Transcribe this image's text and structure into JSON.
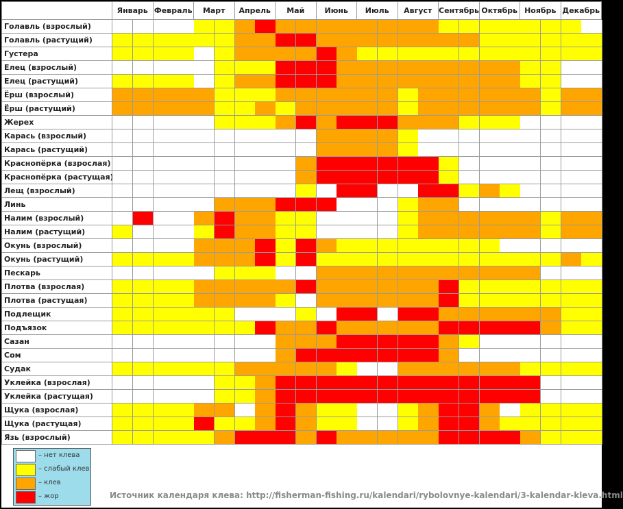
{
  "chart_data": {
    "type": "heatmap",
    "months": [
      "Январь",
      "Февраль",
      "Март",
      "Апрель",
      "Май",
      "Июнь",
      "Июль",
      "Август",
      "Сентябрь",
      "Октябрь",
      "Ноябрь",
      "Декабрь"
    ],
    "periods_per_month": 2,
    "levels": [
      "нет клева",
      "слабый клев",
      "клев",
      "жор"
    ],
    "level_colors": [
      "#ffffff",
      "#ffff00",
      "#ffa500",
      "#ff0000"
    ],
    "rows": [
      {
        "fish": "Голавль (взрослый)",
        "values": [
          0,
          0,
          0,
          0,
          1,
          1,
          2,
          3,
          2,
          2,
          2,
          2,
          2,
          2,
          2,
          2,
          1,
          1,
          1,
          1,
          1,
          1,
          1,
          0
        ]
      },
      {
        "fish": "Голавль (растущий)",
        "values": [
          1,
          1,
          1,
          1,
          1,
          1,
          2,
          2,
          3,
          3,
          2,
          2,
          2,
          2,
          2,
          2,
          2,
          2,
          1,
          1,
          1,
          1,
          1,
          1
        ]
      },
      {
        "fish": "Густера",
        "values": [
          1,
          1,
          1,
          1,
          0,
          1,
          2,
          2,
          2,
          2,
          3,
          2,
          1,
          1,
          1,
          1,
          1,
          1,
          1,
          1,
          1,
          1,
          1,
          1
        ]
      },
      {
        "fish": "Елец (взрослый)",
        "values": [
          0,
          0,
          0,
          0,
          0,
          1,
          1,
          1,
          3,
          3,
          3,
          2,
          2,
          2,
          2,
          2,
          2,
          2,
          2,
          2,
          1,
          1,
          0,
          0
        ]
      },
      {
        "fish": "Елец (растущий)",
        "values": [
          1,
          1,
          1,
          1,
          0,
          1,
          2,
          2,
          3,
          3,
          3,
          2,
          2,
          2,
          2,
          2,
          2,
          2,
          2,
          2,
          1,
          1,
          0,
          0
        ]
      },
      {
        "fish": "Ёрш (взрослый)",
        "values": [
          2,
          2,
          2,
          2,
          2,
          1,
          1,
          1,
          2,
          2,
          2,
          2,
          2,
          2,
          1,
          2,
          2,
          2,
          2,
          2,
          2,
          1,
          2,
          2
        ]
      },
      {
        "fish": "Ёрш (растущий)",
        "values": [
          2,
          2,
          2,
          2,
          2,
          1,
          1,
          2,
          1,
          2,
          2,
          2,
          2,
          2,
          1,
          2,
          2,
          2,
          2,
          2,
          2,
          1,
          2,
          2
        ]
      },
      {
        "fish": "Жерех",
        "values": [
          0,
          0,
          0,
          0,
          0,
          1,
          1,
          1,
          2,
          3,
          2,
          3,
          3,
          3,
          2,
          2,
          2,
          1,
          1,
          1,
          0,
          0,
          0,
          0
        ]
      },
      {
        "fish": "Карась (взрослый)",
        "values": [
          0,
          0,
          0,
          0,
          0,
          0,
          0,
          0,
          0,
          0,
          2,
          2,
          2,
          2,
          1,
          0,
          0,
          0,
          0,
          0,
          0,
          0,
          0,
          0
        ]
      },
      {
        "fish": "Карась (растущий)",
        "values": [
          0,
          0,
          0,
          0,
          0,
          0,
          0,
          0,
          0,
          0,
          2,
          2,
          2,
          2,
          1,
          0,
          0,
          0,
          0,
          0,
          0,
          0,
          0,
          0
        ]
      },
      {
        "fish": "Краснопёрка (взрослая)",
        "values": [
          0,
          0,
          0,
          0,
          0,
          0,
          0,
          0,
          0,
          2,
          3,
          3,
          3,
          3,
          3,
          3,
          1,
          0,
          0,
          0,
          0,
          0,
          0,
          0
        ]
      },
      {
        "fish": "Краснопёрка (растущая)",
        "values": [
          0,
          0,
          0,
          0,
          0,
          0,
          0,
          0,
          0,
          2,
          3,
          3,
          3,
          3,
          3,
          3,
          1,
          0,
          0,
          0,
          0,
          0,
          0,
          0
        ]
      },
      {
        "fish": "Лещ (взрослый)",
        "values": [
          0,
          0,
          0,
          0,
          0,
          0,
          0,
          0,
          0,
          1,
          0,
          3,
          3,
          0,
          0,
          3,
          3,
          1,
          2,
          1,
          0,
          0,
          0,
          0
        ]
      },
      {
        "fish": "Линь",
        "values": [
          0,
          0,
          0,
          0,
          0,
          2,
          2,
          2,
          3,
          3,
          3,
          0,
          0,
          0,
          1,
          2,
          2,
          0,
          0,
          0,
          0,
          0,
          0,
          0
        ]
      },
      {
        "fish": "Налим (взрослый)",
        "values": [
          0,
          3,
          0,
          0,
          2,
          3,
          2,
          2,
          1,
          1,
          0,
          0,
          0,
          0,
          1,
          2,
          2,
          2,
          2,
          2,
          2,
          1,
          2,
          2
        ]
      },
      {
        "fish": "Налим (растущий)",
        "values": [
          1,
          0,
          0,
          0,
          1,
          3,
          2,
          2,
          1,
          1,
          0,
          0,
          0,
          0,
          1,
          2,
          2,
          2,
          2,
          2,
          2,
          1,
          2,
          2
        ]
      },
      {
        "fish": "Окунь (взрослый)",
        "values": [
          0,
          0,
          0,
          0,
          2,
          2,
          2,
          3,
          1,
          3,
          2,
          1,
          1,
          1,
          1,
          1,
          1,
          1,
          1,
          0,
          0,
          0,
          0,
          0
        ]
      },
      {
        "fish": "Окунь (растущий)",
        "values": [
          1,
          1,
          1,
          1,
          2,
          2,
          2,
          3,
          1,
          3,
          1,
          1,
          1,
          1,
          1,
          1,
          1,
          1,
          1,
          1,
          1,
          1,
          2,
          1
        ]
      },
      {
        "fish": "Пескарь",
        "values": [
          0,
          0,
          0,
          0,
          0,
          1,
          1,
          1,
          0,
          0,
          2,
          2,
          2,
          2,
          2,
          2,
          2,
          2,
          2,
          2,
          2,
          0,
          0,
          0
        ]
      },
      {
        "fish": "Плотва (взрослая)",
        "values": [
          1,
          1,
          1,
          1,
          2,
          2,
          2,
          2,
          2,
          3,
          2,
          2,
          2,
          2,
          2,
          2,
          3,
          1,
          1,
          1,
          1,
          1,
          1,
          1
        ]
      },
      {
        "fish": "Плотва (растущая)",
        "values": [
          1,
          1,
          1,
          1,
          2,
          2,
          2,
          2,
          1,
          0,
          2,
          2,
          2,
          2,
          2,
          2,
          3,
          1,
          1,
          1,
          1,
          1,
          1,
          1
        ]
      },
      {
        "fish": "Подлещик",
        "values": [
          1,
          1,
          1,
          1,
          1,
          1,
          0,
          0,
          0,
          1,
          0,
          3,
          3,
          0,
          3,
          3,
          2,
          2,
          2,
          2,
          2,
          2,
          1,
          1
        ]
      },
      {
        "fish": "Подъязок",
        "values": [
          1,
          1,
          1,
          1,
          1,
          1,
          1,
          3,
          2,
          2,
          3,
          2,
          2,
          2,
          2,
          2,
          3,
          3,
          3,
          3,
          3,
          2,
          1,
          1
        ]
      },
      {
        "fish": "Сазан",
        "values": [
          0,
          0,
          0,
          0,
          0,
          0,
          0,
          0,
          2,
          2,
          2,
          3,
          3,
          3,
          3,
          3,
          2,
          1,
          0,
          0,
          0,
          0,
          0,
          0
        ]
      },
      {
        "fish": "Сом",
        "values": [
          0,
          0,
          0,
          0,
          0,
          0,
          0,
          0,
          2,
          3,
          3,
          3,
          3,
          3,
          3,
          3,
          2,
          0,
          0,
          0,
          0,
          0,
          0,
          0
        ]
      },
      {
        "fish": "Судак",
        "values": [
          1,
          1,
          1,
          1,
          1,
          1,
          2,
          2,
          2,
          2,
          2,
          1,
          0,
          0,
          2,
          2,
          2,
          2,
          2,
          2,
          1,
          1,
          1,
          1
        ]
      },
      {
        "fish": "Уклейка (взрослая)",
        "values": [
          0,
          0,
          0,
          0,
          0,
          1,
          1,
          2,
          3,
          3,
          3,
          3,
          3,
          3,
          3,
          3,
          3,
          3,
          3,
          3,
          3,
          0,
          0,
          0
        ]
      },
      {
        "fish": "Уклейка (растущая)",
        "values": [
          0,
          0,
          0,
          0,
          0,
          1,
          1,
          2,
          3,
          3,
          3,
          3,
          3,
          3,
          3,
          3,
          3,
          3,
          3,
          3,
          3,
          0,
          0,
          0
        ]
      },
      {
        "fish": "Щука (взрослая)",
        "values": [
          1,
          1,
          1,
          1,
          2,
          2,
          0,
          2,
          3,
          2,
          1,
          1,
          0,
          0,
          1,
          2,
          3,
          3,
          2,
          0,
          1,
          1,
          1,
          1
        ]
      },
      {
        "fish": "Щука (растущая)",
        "values": [
          1,
          1,
          1,
          1,
          3,
          1,
          1,
          2,
          3,
          2,
          1,
          1,
          0,
          0,
          1,
          2,
          3,
          3,
          2,
          1,
          1,
          1,
          1,
          1
        ]
      },
      {
        "fish": "Язь (взрослый)",
        "values": [
          1,
          1,
          1,
          1,
          1,
          2,
          3,
          3,
          3,
          2,
          3,
          2,
          2,
          2,
          2,
          2,
          3,
          3,
          3,
          3,
          2,
          1,
          1,
          1
        ]
      }
    ]
  },
  "legend": [
    {
      "label": "– нет клева",
      "level": 0
    },
    {
      "label": "– слабый клев",
      "level": 1
    },
    {
      "label": "– клев",
      "level": 2
    },
    {
      "label": "– жор",
      "level": 3
    }
  ],
  "source_text": "Источник календаря клева: http://fisherman-fishing.ru/kalendari/rybolovnye-kalendari/3-kalendar-kleva.html"
}
